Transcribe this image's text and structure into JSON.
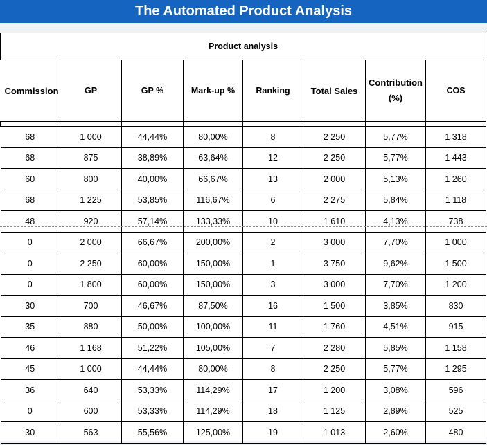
{
  "app": {
    "banner_title": "The Automated Product Analysis"
  },
  "sheet": {
    "title": "Product analysis",
    "columns": [
      {
        "key": "commission",
        "label": "Commission"
      },
      {
        "key": "gp",
        "label": "GP"
      },
      {
        "key": "gp_pct",
        "label": "GP %"
      },
      {
        "key": "markup_pct",
        "label": "Mark-up %"
      },
      {
        "key": "ranking",
        "label": "Ranking"
      },
      {
        "key": "total_sales",
        "label": "Total Sales"
      },
      {
        "key": "contribution",
        "label": "Contribution",
        "label_line2": "(%)"
      },
      {
        "key": "cos",
        "label": "COS"
      }
    ],
    "rows": [
      [
        "68",
        "1 000",
        "44,44%",
        "80,00%",
        "8",
        "2 250",
        "5,77%",
        "1 318"
      ],
      [
        "68",
        "875",
        "38,89%",
        "63,64%",
        "12",
        "2 250",
        "5,77%",
        "1 443"
      ],
      [
        "60",
        "800",
        "40,00%",
        "66,67%",
        "13",
        "2 000",
        "5,13%",
        "1 260"
      ],
      [
        "68",
        "1 225",
        "53,85%",
        "116,67%",
        "6",
        "2 275",
        "5,84%",
        "1 118"
      ],
      [
        "48",
        "920",
        "57,14%",
        "133,33%",
        "10",
        "1 610",
        "4,13%",
        "738"
      ],
      [
        "0",
        "2 000",
        "66,67%",
        "200,00%",
        "2",
        "3 000",
        "7,70%",
        "1 000"
      ],
      [
        "0",
        "2 250",
        "60,00%",
        "150,00%",
        "1",
        "3 750",
        "9,62%",
        "1 500"
      ],
      [
        "0",
        "1 800",
        "60,00%",
        "150,00%",
        "3",
        "3 000",
        "7,70%",
        "1 200"
      ],
      [
        "30",
        "700",
        "46,67%",
        "87,50%",
        "16",
        "1 500",
        "3,85%",
        "830"
      ],
      [
        "35",
        "880",
        "50,00%",
        "100,00%",
        "11",
        "1 760",
        "4,51%",
        "915"
      ],
      [
        "46",
        "1 168",
        "51,22%",
        "105,00%",
        "7",
        "2 280",
        "5,85%",
        "1 158"
      ],
      [
        "45",
        "1 000",
        "44,44%",
        "80,00%",
        "8",
        "2 250",
        "5,77%",
        "1 295"
      ],
      [
        "36",
        "640",
        "53,33%",
        "114,29%",
        "17",
        "1 200",
        "3,08%",
        "596"
      ],
      [
        "0",
        "600",
        "53,33%",
        "114,29%",
        "18",
        "1 125",
        "2,89%",
        "525"
      ],
      [
        "30",
        "563",
        "55,56%",
        "125,00%",
        "19",
        "1 013",
        "2,60%",
        "480"
      ]
    ]
  },
  "colors": {
    "banner": "#1565c0",
    "banner_text": "#ffffff",
    "page_strip": "#eef1f6",
    "grid_line": "#000000"
  }
}
